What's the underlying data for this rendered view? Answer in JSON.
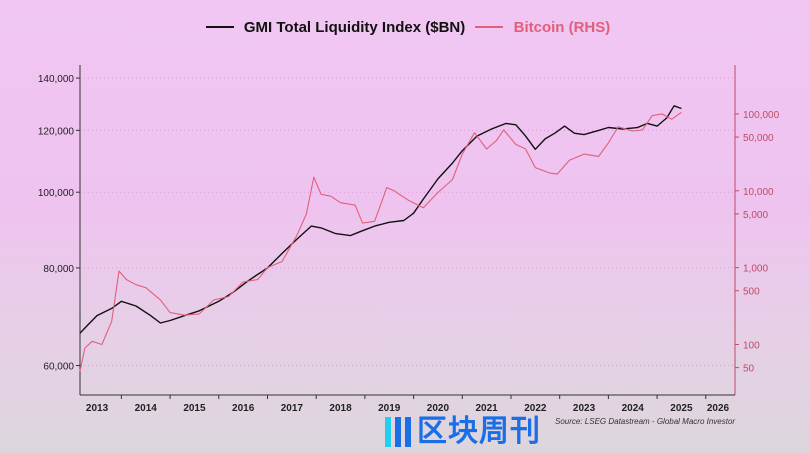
{
  "chart_data": {
    "type": "line",
    "title": "",
    "legend_position": "top-center",
    "xlabel": "",
    "x_ticks": [
      "2013",
      "2014",
      "2015",
      "2016",
      "2017",
      "2018",
      "2019",
      "2020",
      "2021",
      "2022",
      "2023",
      "2024",
      "2025",
      "2026"
    ],
    "xlim": [
      2013.15,
      2026.6
    ],
    "left_axis": {
      "scale": "log",
      "ticks": [
        60000,
        80000,
        100000,
        120000,
        140000
      ],
      "tick_labels": [
        "60,000",
        "80,000",
        "100,000",
        "120,000",
        "140,000"
      ],
      "ylim": [
        55000,
        145500
      ]
    },
    "right_axis": {
      "scale": "log",
      "ticks": [
        50,
        100,
        500,
        1000,
        5000,
        10000,
        50000,
        100000
      ],
      "tick_labels": [
        "50",
        "100",
        "500",
        "1,000",
        "5,000",
        "10,000",
        "50,000",
        "100,000"
      ],
      "ylim": [
        22,
        433000
      ]
    },
    "grid": true,
    "series": [
      {
        "name": "GMI Total Liquidity Index ($BN)",
        "axis": "left",
        "color": "#111111",
        "x": [
          2013.15,
          2013.3,
          2013.5,
          2013.8,
          2014.0,
          2014.3,
          2014.6,
          2014.8,
          2015.0,
          2015.3,
          2015.6,
          2016.0,
          2016.3,
          2016.6,
          2017.0,
          2017.3,
          2017.6,
          2017.9,
          2018.1,
          2018.4,
          2018.7,
          2018.9,
          2019.2,
          2019.5,
          2019.8,
          2020.0,
          2020.2,
          2020.5,
          2020.8,
          2021.0,
          2021.3,
          2021.6,
          2021.9,
          2022.1,
          2022.3,
          2022.5,
          2022.7,
          2022.9,
          2023.1,
          2023.3,
          2023.5,
          2023.8,
          2024.0,
          2024.3,
          2024.6,
          2024.8,
          2025.0,
          2025.2,
          2025.35,
          2025.5
        ],
        "values": [
          66000,
          67500,
          69500,
          71000,
          72500,
          71500,
          69500,
          68000,
          68500,
          69500,
          70500,
          72500,
          74500,
          77000,
          80000,
          83500,
          87000,
          90500,
          90000,
          88500,
          88000,
          89000,
          90500,
          91500,
          92000,
          94000,
          98000,
          104000,
          109000,
          113000,
          118000,
          120500,
          122500,
          122000,
          118000,
          113500,
          117000,
          119000,
          121500,
          119000,
          118500,
          120000,
          121000,
          120500,
          121000,
          122500,
          121500,
          124500,
          129000,
          128000
        ]
      },
      {
        "name": "Bitcoin (RHS)",
        "axis": "right",
        "color": "#e0607a",
        "x": [
          2013.15,
          2013.25,
          2013.4,
          2013.6,
          2013.8,
          2013.95,
          2014.1,
          2014.3,
          2014.5,
          2014.8,
          2015.0,
          2015.3,
          2015.6,
          2015.9,
          2016.2,
          2016.5,
          2016.8,
          2017.0,
          2017.3,
          2017.6,
          2017.8,
          2017.95,
          2018.1,
          2018.3,
          2018.5,
          2018.8,
          2018.95,
          2019.2,
          2019.45,
          2019.6,
          2019.9,
          2020.2,
          2020.5,
          2020.8,
          2021.0,
          2021.25,
          2021.5,
          2021.7,
          2021.85,
          2022.1,
          2022.3,
          2022.5,
          2022.8,
          2022.95,
          2023.2,
          2023.5,
          2023.8,
          2024.0,
          2024.2,
          2024.5,
          2024.7,
          2024.9,
          2025.1,
          2025.3,
          2025.5
        ],
        "values": [
          45,
          90,
          110,
          100,
          200,
          900,
          700,
          600,
          550,
          380,
          260,
          240,
          250,
          380,
          420,
          650,
          700,
          1000,
          1200,
          2600,
          5000,
          15000,
          9000,
          8500,
          7000,
          6500,
          3800,
          4000,
          11000,
          10000,
          7500,
          6000,
          9500,
          14000,
          30000,
          57000,
          35000,
          45000,
          62000,
          40000,
          35000,
          20000,
          17000,
          16500,
          25000,
          30000,
          28000,
          42000,
          68000,
          60000,
          62000,
          95000,
          100000,
          85000,
          105000
        ]
      }
    ]
  },
  "source": "Source: LSEG Datastream - Global Macro Investor",
  "watermark": "区块周刊"
}
